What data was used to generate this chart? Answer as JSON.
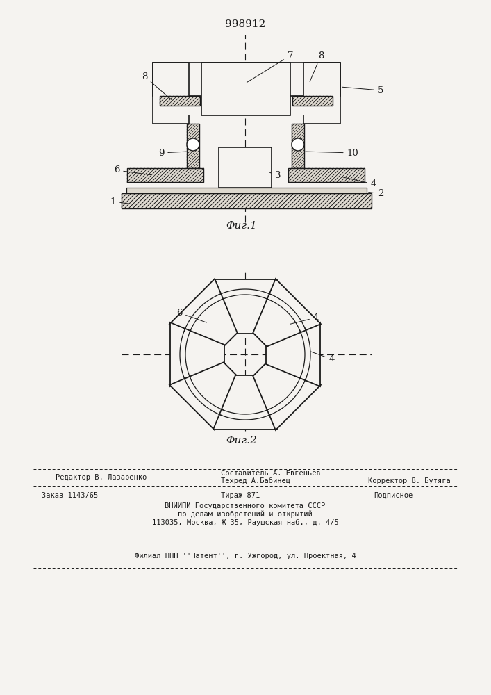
{
  "title": "998912",
  "fig1_caption": "Φиг.1",
  "fig2_caption": "Φиг.2",
  "bg": "#f5f3f0",
  "lc": "#1a1a1a",
  "footer": {
    "editor": "Редактор В. Лазаренко",
    "comp_top": "Составитель А. Евгеньев",
    "tech": "Техред А.Бабинец",
    "corr": "Корректор В. Бутяга",
    "order": "Заказ 1143/65",
    "circ": "Тираж 871",
    "sub": "Подписное",
    "vn1": "ВНИИПИ Государственного комитета СССР",
    "vn2": "по делам изобретений и открытий",
    "vn3": "113035, Москва, Ж-35, Раушская наб., д. 4/5",
    "fil": "Филиал ППП ''Патент'', г. Ужгород, ул. Проектная, 4"
  }
}
